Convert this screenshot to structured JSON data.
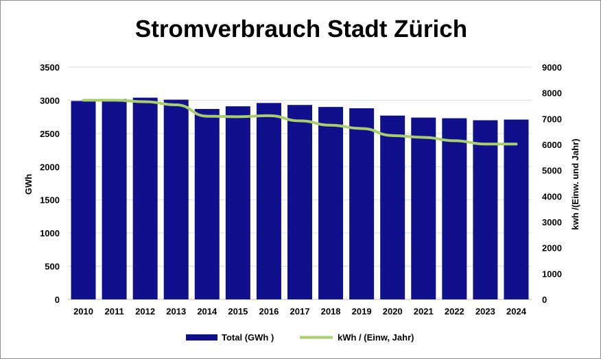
{
  "chart_data": {
    "type": "bar",
    "title": "Stromverbrauch Stadt Zürich",
    "categories": [
      "2010",
      "2011",
      "2012",
      "2013",
      "2014",
      "2015",
      "2016",
      "2017",
      "2018",
      "2019",
      "2020",
      "2021",
      "2022",
      "2023",
      "2024"
    ],
    "series": [
      {
        "name": "Total (GWh )",
        "type": "bar",
        "axis": "left",
        "color": "#10108c",
        "values": [
          2990,
          3020,
          3040,
          3010,
          2870,
          2910,
          2960,
          2930,
          2900,
          2880,
          2770,
          2740,
          2730,
          2700,
          2710
        ]
      },
      {
        "name": "kWh / (Einw, Jahr)",
        "type": "line",
        "axis": "right",
        "color": "#a8cf6a",
        "values": [
          7720,
          7720,
          7660,
          7540,
          7100,
          7080,
          7120,
          6920,
          6750,
          6620,
          6350,
          6280,
          6150,
          6020,
          6020
        ]
      }
    ],
    "ylabel": "GWh",
    "y2label": "kwh /(Einw. und Jahr)",
    "ylim": [
      0,
      3500
    ],
    "y2lim": [
      0,
      9000
    ],
    "yticks": [
      "0",
      "500",
      "1000",
      "1500",
      "2000",
      "2500",
      "3000",
      "3500"
    ],
    "y2ticks": [
      "0",
      "1000",
      "2000",
      "3000",
      "4000",
      "5000",
      "6000",
      "7000",
      "8000",
      "9000"
    ],
    "grid": true,
    "legend_position": "bottom"
  }
}
